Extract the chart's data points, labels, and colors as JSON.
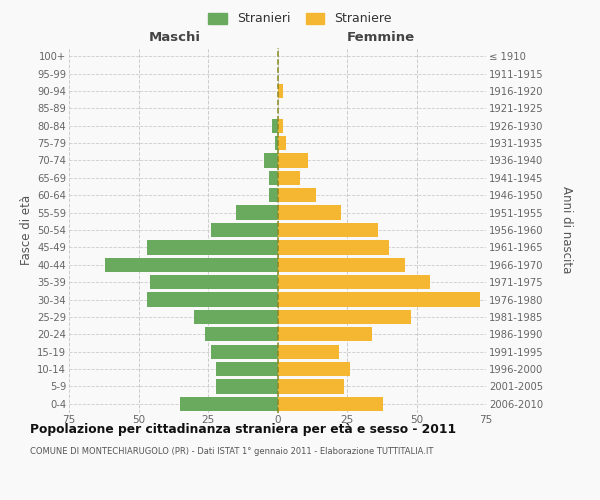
{
  "age_groups": [
    "0-4",
    "5-9",
    "10-14",
    "15-19",
    "20-24",
    "25-29",
    "30-34",
    "35-39",
    "40-44",
    "45-49",
    "50-54",
    "55-59",
    "60-64",
    "65-69",
    "70-74",
    "75-79",
    "80-84",
    "85-89",
    "90-94",
    "95-99",
    "100+"
  ],
  "birth_years": [
    "2006-2010",
    "2001-2005",
    "1996-2000",
    "1991-1995",
    "1986-1990",
    "1981-1985",
    "1976-1980",
    "1971-1975",
    "1966-1970",
    "1961-1965",
    "1956-1960",
    "1951-1955",
    "1946-1950",
    "1941-1945",
    "1936-1940",
    "1931-1935",
    "1926-1930",
    "1921-1925",
    "1916-1920",
    "1911-1915",
    "≤ 1910"
  ],
  "maschi": [
    35,
    22,
    22,
    24,
    26,
    30,
    47,
    46,
    62,
    47,
    24,
    15,
    3,
    3,
    5,
    1,
    2,
    0,
    0,
    0,
    0
  ],
  "femmine": [
    38,
    24,
    26,
    22,
    34,
    48,
    73,
    55,
    46,
    40,
    36,
    23,
    14,
    8,
    11,
    3,
    2,
    0,
    2,
    0,
    0
  ],
  "male_color": "#6aaa5e",
  "female_color": "#f5b731",
  "bg_color": "#f9f9f9",
  "grid_color": "#cccccc",
  "center_line_color": "#888822",
  "title": "Popolazione per cittadinanza straniera per età e sesso - 2011",
  "subtitle": "COMUNE DI MONTECHIARUGOLO (PR) - Dati ISTAT 1° gennaio 2011 - Elaborazione TUTTITALIA.IT",
  "header_left": "Maschi",
  "header_right": "Femmine",
  "ylabel_left": "Fasce di età",
  "ylabel_right": "Anni di nascita",
  "legend_male": "Stranieri",
  "legend_female": "Straniere",
  "xlim": 75
}
